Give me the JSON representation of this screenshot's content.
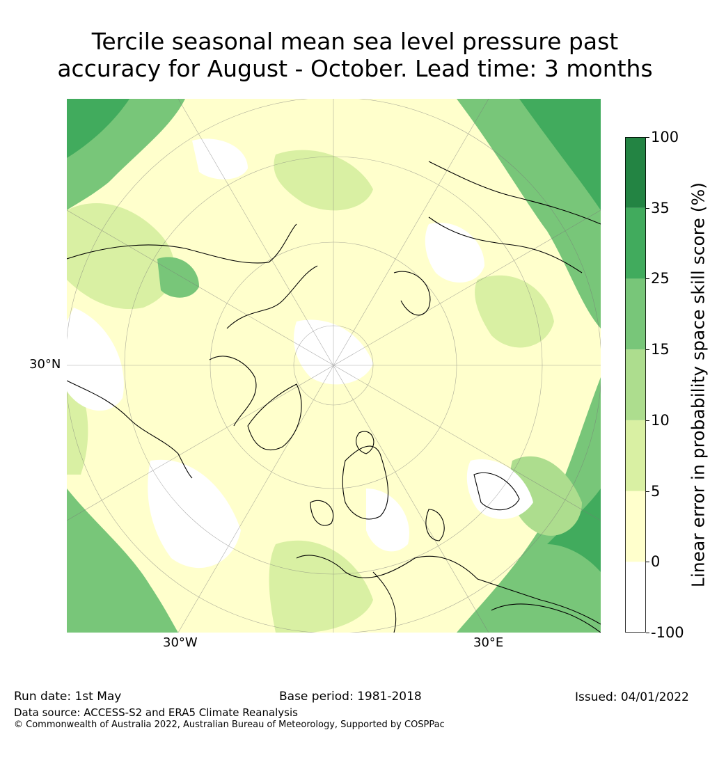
{
  "title_line1": "Tercile seasonal mean sea level pressure past",
  "title_line2": "accuracy for August - October. Lead time: 3 months",
  "graticule_labels": {
    "lat_30n": "30°N",
    "lon_30w": "30°W",
    "lon_30e": "30°E"
  },
  "colorbar": {
    "title": "Linear error in probability space skill score (%)",
    "ticks": [
      "100",
      "35",
      "25",
      "15",
      "10",
      "5",
      "0",
      "-100"
    ],
    "colors": [
      "#ffffff",
      "#ffffcc",
      "#d9f0a3",
      "#addd8e",
      "#78c679",
      "#41ab5d",
      "#238443"
    ]
  },
  "footer": {
    "run_date": "Run date: 1st May",
    "base_period": "Base period: 1981-2018",
    "issued": "Issued: 04/01/2022",
    "data_source": "Data source: ACCESS-S2 and ERA5 Climate Reanalysis",
    "copyright": "© Commonwealth of Australia 2022, Australian Bureau of Meteorology, Supported by COSPPac"
  }
}
